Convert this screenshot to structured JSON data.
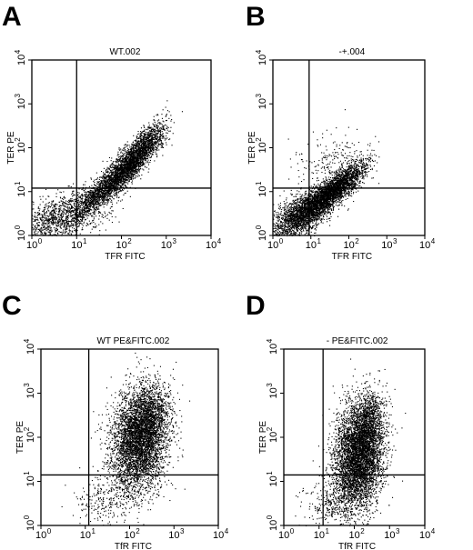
{
  "chart_data": [
    {
      "panel": "A",
      "type": "scatter",
      "title": "WT.002",
      "xlabel": "TFR FITC",
      "ylabel": "TER PE",
      "x_scale": "log",
      "y_scale": "log",
      "xlim": [
        1,
        10000
      ],
      "ylim": [
        1,
        10000
      ],
      "xticks": [
        "10",
        "0",
        "10",
        "1",
        "10",
        "2",
        "10",
        "3",
        "10",
        "4"
      ],
      "tick_labels": [
        {
          "base": "10",
          "exp": "0"
        },
        {
          "base": "10",
          "exp": "1"
        },
        {
          "base": "10",
          "exp": "2"
        },
        {
          "base": "10",
          "exp": "3"
        },
        {
          "base": "10",
          "exp": "4"
        }
      ],
      "quadrant_gate": {
        "x": 10,
        "y": 12
      },
      "density_clusters": [
        {
          "cx": 4,
          "cy": 2.5,
          "sx": 0.55,
          "sy": 0.3,
          "rho": 0.45,
          "n": 1300
        },
        {
          "cx": 35,
          "cy": 10,
          "sx": 0.35,
          "sy": 0.3,
          "rho": 0.85,
          "n": 1300
        },
        {
          "cx": 150,
          "cy": 45,
          "sx": 0.3,
          "sy": 0.33,
          "rho": 0.8,
          "n": 2300
        },
        {
          "cx": 450,
          "cy": 150,
          "sx": 0.2,
          "sy": 0.25,
          "rho": 0.6,
          "n": 500
        }
      ],
      "points_estimated": true
    },
    {
      "panel": "B",
      "type": "scatter",
      "title": "-+.004",
      "xlabel": "TFR FITC",
      "ylabel": "TER PE",
      "x_scale": "log",
      "y_scale": "log",
      "xlim": [
        1,
        10000
      ],
      "ylim": [
        1,
        10000
      ],
      "tick_labels": [
        {
          "base": "10",
          "exp": "0"
        },
        {
          "base": "10",
          "exp": "1"
        },
        {
          "base": "10",
          "exp": "2"
        },
        {
          "base": "10",
          "exp": "3"
        },
        {
          "base": "10",
          "exp": "4"
        }
      ],
      "quadrant_gate": {
        "x": 9,
        "y": 12
      },
      "density_clusters": [
        {
          "cx": 5,
          "cy": 2.8,
          "sx": 0.4,
          "sy": 0.28,
          "rho": 0.55,
          "n": 1700
        },
        {
          "cx": 20,
          "cy": 7,
          "sx": 0.4,
          "sy": 0.28,
          "rho": 0.8,
          "n": 2200
        },
        {
          "cx": 80,
          "cy": 18,
          "sx": 0.3,
          "sy": 0.25,
          "rho": 0.75,
          "n": 1000
        },
        {
          "cx": 40,
          "cy": 40,
          "sx": 0.45,
          "sy": 0.35,
          "rho": 0.2,
          "n": 250
        }
      ],
      "points_estimated": true
    },
    {
      "panel": "C",
      "type": "scatter",
      "title": "WT PE&FITC.002",
      "xlabel": "TfR FITC",
      "ylabel": "TER PE",
      "x_scale": "log",
      "y_scale": "log",
      "xlim": [
        1,
        10000
      ],
      "ylim": [
        1,
        10000
      ],
      "tick_labels": [
        {
          "base": "10",
          "exp": "0"
        },
        {
          "base": "10",
          "exp": "1"
        },
        {
          "base": "10",
          "exp": "2"
        },
        {
          "base": "10",
          "exp": "3"
        },
        {
          "base": "10",
          "exp": "4"
        }
      ],
      "quadrant_gate": {
        "x": 12,
        "y": 14
      },
      "density_clusters": [
        {
          "cx": 160,
          "cy": 90,
          "sx": 0.32,
          "sy": 0.6,
          "rho": 0.15,
          "n": 4600
        },
        {
          "cx": 300,
          "cy": 350,
          "sx": 0.2,
          "sy": 0.3,
          "rho": 0.2,
          "n": 600
        },
        {
          "cx": 30,
          "cy": 4,
          "sx": 0.35,
          "sy": 0.3,
          "rho": 0.1,
          "n": 250
        }
      ],
      "points_estimated": true
    },
    {
      "panel": "D",
      "type": "scatter",
      "title": "- PE&FITC.002",
      "xlabel": "TfR FITC",
      "ylabel": "TER PE",
      "x_scale": "log",
      "y_scale": "log",
      "xlim": [
        1,
        10000
      ],
      "ylim": [
        1,
        10000
      ],
      "tick_labels": [
        {
          "base": "10",
          "exp": "0"
        },
        {
          "base": "10",
          "exp": "1"
        },
        {
          "base": "10",
          "exp": "2"
        },
        {
          "base": "10",
          "exp": "3"
        },
        {
          "base": "10",
          "exp": "4"
        }
      ],
      "quadrant_gate": {
        "x": 13,
        "y": 14
      },
      "density_clusters": [
        {
          "cx": 130,
          "cy": 40,
          "sx": 0.35,
          "sy": 0.62,
          "rho": 0.2,
          "n": 5200
        },
        {
          "cx": 260,
          "cy": 250,
          "sx": 0.2,
          "sy": 0.3,
          "rho": 0.2,
          "n": 500
        },
        {
          "cx": 25,
          "cy": 3,
          "sx": 0.4,
          "sy": 0.3,
          "rho": 0.1,
          "n": 300
        }
      ],
      "points_estimated": true
    }
  ]
}
